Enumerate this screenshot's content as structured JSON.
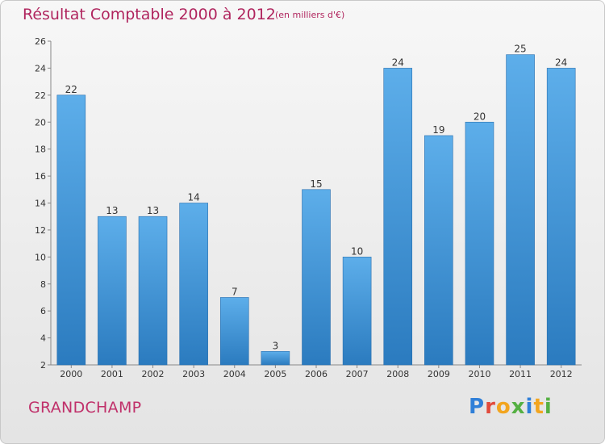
{
  "header": {
    "title": "Résultat Comptable 2000 à 2012",
    "subtitle": "(en milliers d'€)"
  },
  "footer": {
    "commune": "GRANDCHAMP",
    "logo_text": "Proxiti"
  },
  "colors": {
    "title": "#b0255e",
    "bar_light": "#5daeea",
    "bar_dark": "#2b7bbf",
    "background": "#ececec"
  },
  "chart_data": {
    "type": "bar",
    "title": "Résultat Comptable 2000 à 2012",
    "xlabel": "",
    "ylabel": "",
    "categories": [
      "2000",
      "2001",
      "2002",
      "2003",
      "2004",
      "2005",
      "2006",
      "2007",
      "2008",
      "2009",
      "2010",
      "2011",
      "2012"
    ],
    "values": [
      22,
      13,
      13,
      14,
      7,
      3,
      15,
      10,
      24,
      19,
      20,
      25,
      24
    ],
    "ylim": [
      2,
      26
    ],
    "yticks": [
      2,
      4,
      6,
      8,
      10,
      12,
      14,
      16,
      18,
      20,
      22,
      24,
      26
    ],
    "grid": false,
    "legend": "none"
  }
}
